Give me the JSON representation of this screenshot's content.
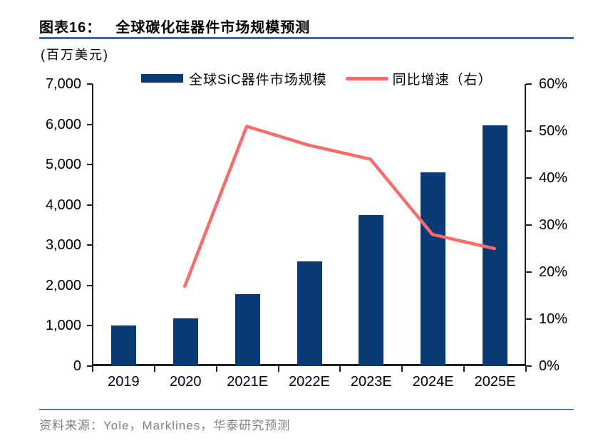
{
  "header": {
    "figure_label": "图表16：",
    "title": "全球碳化硅器件市场规模预测"
  },
  "unit_label": "(百万美元)",
  "legend": {
    "bar_label": "全球SiC器件市场规模",
    "line_label": "同比增速（右）"
  },
  "footer": {
    "source_text": "资料来源：Yole，Marklines，华泰研究预测"
  },
  "theme": {
    "bar_color": "#083a75",
    "line_color": "#f96b6b",
    "axis_color": "#1f1f1f",
    "title_rule_color": "#44679b",
    "footer_rule_color": "#5b7b9c",
    "source_text_color": "#808080"
  },
  "chart_data": {
    "type": "bar",
    "title": "全球碳化硅器件市场规模预测",
    "categories": [
      "2019",
      "2020",
      "2021E",
      "2022E",
      "2023E",
      "2024E",
      "2025E"
    ],
    "series": [
      {
        "name": "全球SiC器件市场规模",
        "type": "bar",
        "axis": "left",
        "color": "#083a75",
        "values": [
          1010,
          1180,
          1780,
          2600,
          3750,
          4800,
          5980
        ]
      },
      {
        "name": "同比增速（右）",
        "type": "line",
        "axis": "right",
        "color": "#f96b6b",
        "values": [
          null,
          17,
          51,
          47,
          44,
          28,
          25
        ]
      }
    ],
    "left_axis": {
      "label": "(百万美元)",
      "min": 0,
      "max": 7000,
      "step": 1000,
      "tick_labels": [
        "0",
        "1,000",
        "2,000",
        "3,000",
        "4,000",
        "5,000",
        "6,000",
        "7,000"
      ]
    },
    "right_axis": {
      "label": "同比增速",
      "min": 0,
      "max": 60,
      "step": 10,
      "tick_labels": [
        "0%",
        "10%",
        "20%",
        "30%",
        "40%",
        "50%",
        "60%"
      ]
    },
    "grid": false,
    "legend_position": "top"
  }
}
